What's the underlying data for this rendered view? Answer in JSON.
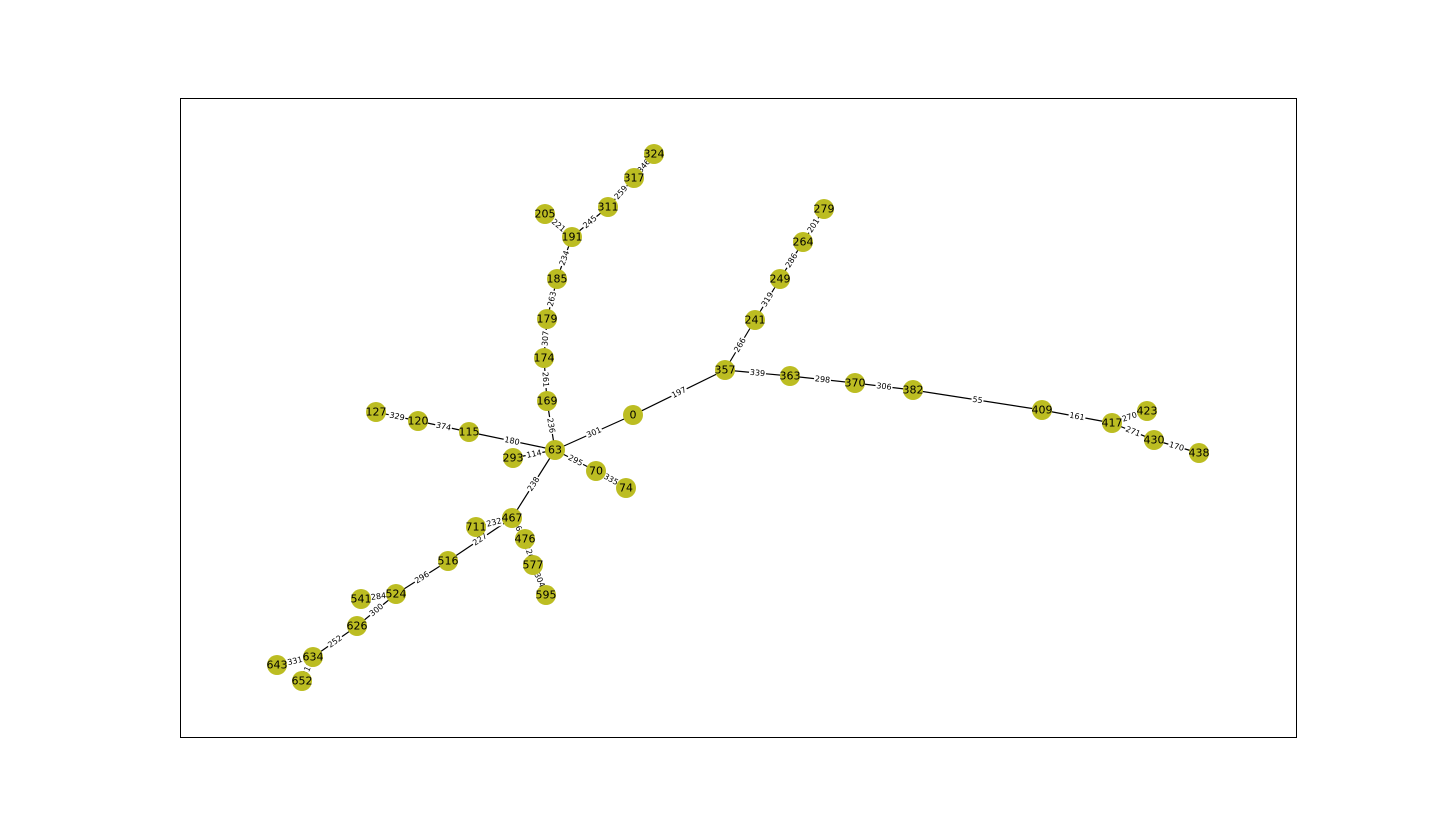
{
  "node_color": "#bcbd22",
  "edge_color": "#000000",
  "frame_color": "#000000",
  "nodes": [
    "0",
    "63",
    "357",
    "363",
    "370",
    "382",
    "409",
    "417",
    "423",
    "430",
    "438",
    "241",
    "249",
    "264",
    "279",
    "169",
    "174",
    "179",
    "185",
    "191",
    "205",
    "311",
    "317",
    "324",
    "115",
    "120",
    "127",
    "293",
    "70",
    "74",
    "467",
    "711",
    "516",
    "524",
    "541",
    "626",
    "634",
    "643",
    "652",
    "476",
    "577",
    "595"
  ],
  "edges": [
    {
      "source": "0",
      "target": "357",
      "weight": "197"
    },
    {
      "source": "0",
      "target": "63",
      "weight": "301"
    },
    {
      "source": "357",
      "target": "363",
      "weight": "339"
    },
    {
      "source": "363",
      "target": "370",
      "weight": "298"
    },
    {
      "source": "370",
      "target": "382",
      "weight": "306"
    },
    {
      "source": "382",
      "target": "409",
      "weight": "55"
    },
    {
      "source": "409",
      "target": "417",
      "weight": "161"
    },
    {
      "source": "417",
      "target": "423",
      "weight": "270"
    },
    {
      "source": "417",
      "target": "430",
      "weight": "271"
    },
    {
      "source": "430",
      "target": "438",
      "weight": "170"
    },
    {
      "source": "357",
      "target": "241",
      "weight": "266"
    },
    {
      "source": "241",
      "target": "249",
      "weight": "319"
    },
    {
      "source": "249",
      "target": "264",
      "weight": "286"
    },
    {
      "source": "264",
      "target": "279",
      "weight": "201"
    },
    {
      "source": "63",
      "target": "169",
      "weight": "236"
    },
    {
      "source": "169",
      "target": "174",
      "weight": "261"
    },
    {
      "source": "174",
      "target": "179",
      "weight": "307"
    },
    {
      "source": "179",
      "target": "185",
      "weight": "263"
    },
    {
      "source": "185",
      "target": "191",
      "weight": "234"
    },
    {
      "source": "191",
      "target": "205",
      "weight": "221"
    },
    {
      "source": "191",
      "target": "311",
      "weight": "245"
    },
    {
      "source": "311",
      "target": "317",
      "weight": "259"
    },
    {
      "source": "317",
      "target": "324",
      "weight": "346"
    },
    {
      "source": "63",
      "target": "115",
      "weight": "180"
    },
    {
      "source": "115",
      "target": "120",
      "weight": "374"
    },
    {
      "source": "120",
      "target": "127",
      "weight": "329"
    },
    {
      "source": "63",
      "target": "293",
      "weight": "114"
    },
    {
      "source": "63",
      "target": "70",
      "weight": "295"
    },
    {
      "source": "70",
      "target": "74",
      "weight": "335"
    },
    {
      "source": "63",
      "target": "467",
      "weight": "238"
    },
    {
      "source": "467",
      "target": "711",
      "weight": "232"
    },
    {
      "source": "467",
      "target": "516",
      "weight": "227"
    },
    {
      "source": "516",
      "target": "524",
      "weight": "296"
    },
    {
      "source": "524",
      "target": "541",
      "weight": "284"
    },
    {
      "source": "524",
      "target": "626",
      "weight": "300"
    },
    {
      "source": "626",
      "target": "634",
      "weight": "252"
    },
    {
      "source": "634",
      "target": "643",
      "weight": "331"
    },
    {
      "source": "634",
      "target": "652",
      "weight": "311"
    },
    {
      "source": "467",
      "target": "476",
      "weight": "263"
    },
    {
      "source": "476",
      "target": "577",
      "weight": "226"
    },
    {
      "source": "577",
      "target": "595",
      "weight": "304"
    }
  ]
}
